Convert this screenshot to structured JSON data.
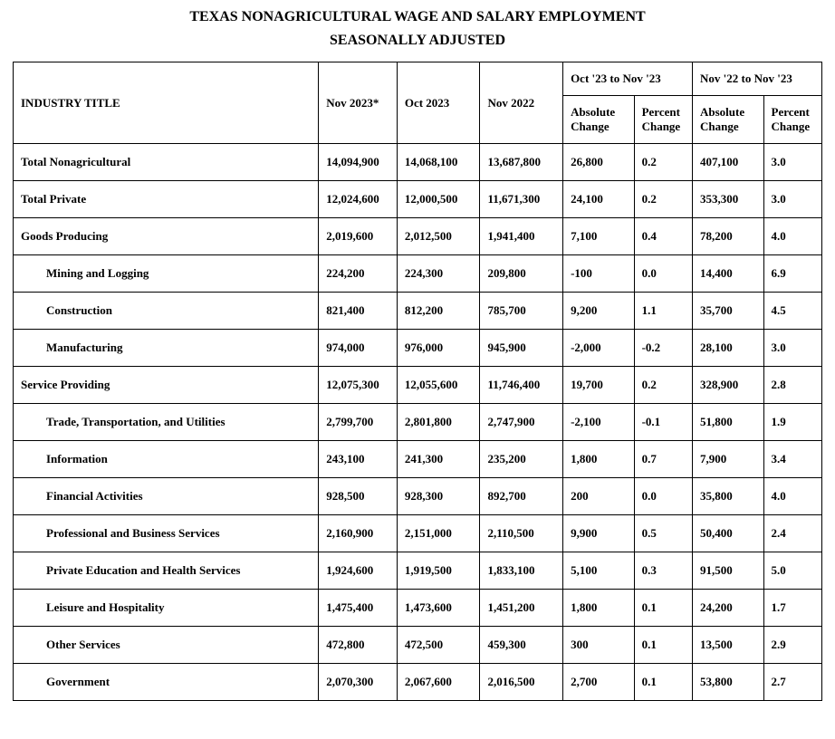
{
  "title_line1": "TEXAS NONAGRICULTURAL WAGE AND SALARY EMPLOYMENT",
  "title_line2": "SEASONALLY ADJUSTED",
  "headers": {
    "industry": "INDUSTRY TITLE",
    "nov2023": "Nov 2023*",
    "oct2023": "Oct 2023",
    "nov2022": "Nov 2022",
    "mom_group": "Oct '23 to Nov '23",
    "yoy_group": "Nov '22 to Nov '23",
    "abs": "Absolute Change",
    "pct": "Percent Change"
  },
  "rows": [
    {
      "indent": 0,
      "label": "Total Nonagricultural",
      "nov2023": "14,094,900",
      "oct2023": "14,068,100",
      "nov2022": "13,687,800",
      "mom_abs": "26,800",
      "mom_pct": "0.2",
      "yoy_abs": "407,100",
      "yoy_pct": "3.0"
    },
    {
      "indent": 0,
      "label": "Total Private",
      "nov2023": "12,024,600",
      "oct2023": "12,000,500",
      "nov2022": "11,671,300",
      "mom_abs": "24,100",
      "mom_pct": "0.2",
      "yoy_abs": "353,300",
      "yoy_pct": "3.0"
    },
    {
      "indent": 0,
      "label": "Goods Producing",
      "nov2023": "2,019,600",
      "oct2023": "2,012,500",
      "nov2022": "1,941,400",
      "mom_abs": "7,100",
      "mom_pct": "0.4",
      "yoy_abs": "78,200",
      "yoy_pct": "4.0"
    },
    {
      "indent": 1,
      "label": "Mining and Logging",
      "nov2023": "224,200",
      "oct2023": "224,300",
      "nov2022": "209,800",
      "mom_abs": "-100",
      "mom_pct": "0.0",
      "yoy_abs": "14,400",
      "yoy_pct": "6.9"
    },
    {
      "indent": 1,
      "label": "Construction",
      "nov2023": "821,400",
      "oct2023": "812,200",
      "nov2022": "785,700",
      "mom_abs": "9,200",
      "mom_pct": "1.1",
      "yoy_abs": "35,700",
      "yoy_pct": "4.5"
    },
    {
      "indent": 1,
      "label": "Manufacturing",
      "nov2023": "974,000",
      "oct2023": "976,000",
      "nov2022": "945,900",
      "mom_abs": "-2,000",
      "mom_pct": "-0.2",
      "yoy_abs": "28,100",
      "yoy_pct": "3.0"
    },
    {
      "indent": 0,
      "label": "Service Providing",
      "nov2023": "12,075,300",
      "oct2023": "12,055,600",
      "nov2022": "11,746,400",
      "mom_abs": "19,700",
      "mom_pct": "0.2",
      "yoy_abs": "328,900",
      "yoy_pct": "2.8"
    },
    {
      "indent": 2,
      "label": "Trade, Transportation, and Utilities",
      "nov2023": "2,799,700",
      "oct2023": "2,801,800",
      "nov2022": "2,747,900",
      "mom_abs": "-2,100",
      "mom_pct": "-0.1",
      "yoy_abs": "51,800",
      "yoy_pct": "1.9"
    },
    {
      "indent": 2,
      "label": "Information",
      "nov2023": "243,100",
      "oct2023": "241,300",
      "nov2022": "235,200",
      "mom_abs": "1,800",
      "mom_pct": "0.7",
      "yoy_abs": "7,900",
      "yoy_pct": "3.4"
    },
    {
      "indent": 2,
      "label": "Financial Activities",
      "nov2023": "928,500",
      "oct2023": "928,300",
      "nov2022": "892,700",
      "mom_abs": "200",
      "mom_pct": "0.0",
      "yoy_abs": "35,800",
      "yoy_pct": "4.0"
    },
    {
      "indent": 2,
      "label": "Professional and Business Services",
      "nov2023": "2,160,900",
      "oct2023": "2,151,000",
      "nov2022": "2,110,500",
      "mom_abs": "9,900",
      "mom_pct": "0.5",
      "yoy_abs": "50,400",
      "yoy_pct": "2.4"
    },
    {
      "indent": 2,
      "label": "Private Education and Health Services",
      "nov2023": "1,924,600",
      "oct2023": "1,919,500",
      "nov2022": "1,833,100",
      "mom_abs": "5,100",
      "mom_pct": "0.3",
      "yoy_abs": "91,500",
      "yoy_pct": "5.0"
    },
    {
      "indent": 2,
      "label": "Leisure and Hospitality",
      "nov2023": "1,475,400",
      "oct2023": "1,473,600",
      "nov2022": "1,451,200",
      "mom_abs": "1,800",
      "mom_pct": "0.1",
      "yoy_abs": "24,200",
      "yoy_pct": "1.7"
    },
    {
      "indent": 2,
      "label": "Other Services",
      "nov2023": "472,800",
      "oct2023": "472,500",
      "nov2022": "459,300",
      "mom_abs": "300",
      "mom_pct": "0.1",
      "yoy_abs": "13,500",
      "yoy_pct": "2.9"
    },
    {
      "indent": 2,
      "label": "Government",
      "nov2023": "2,070,300",
      "oct2023": "2,067,600",
      "nov2022": "2,016,500",
      "mom_abs": "2,700",
      "mom_pct": "0.1",
      "yoy_abs": "53,800",
      "yoy_pct": "2.7"
    }
  ]
}
